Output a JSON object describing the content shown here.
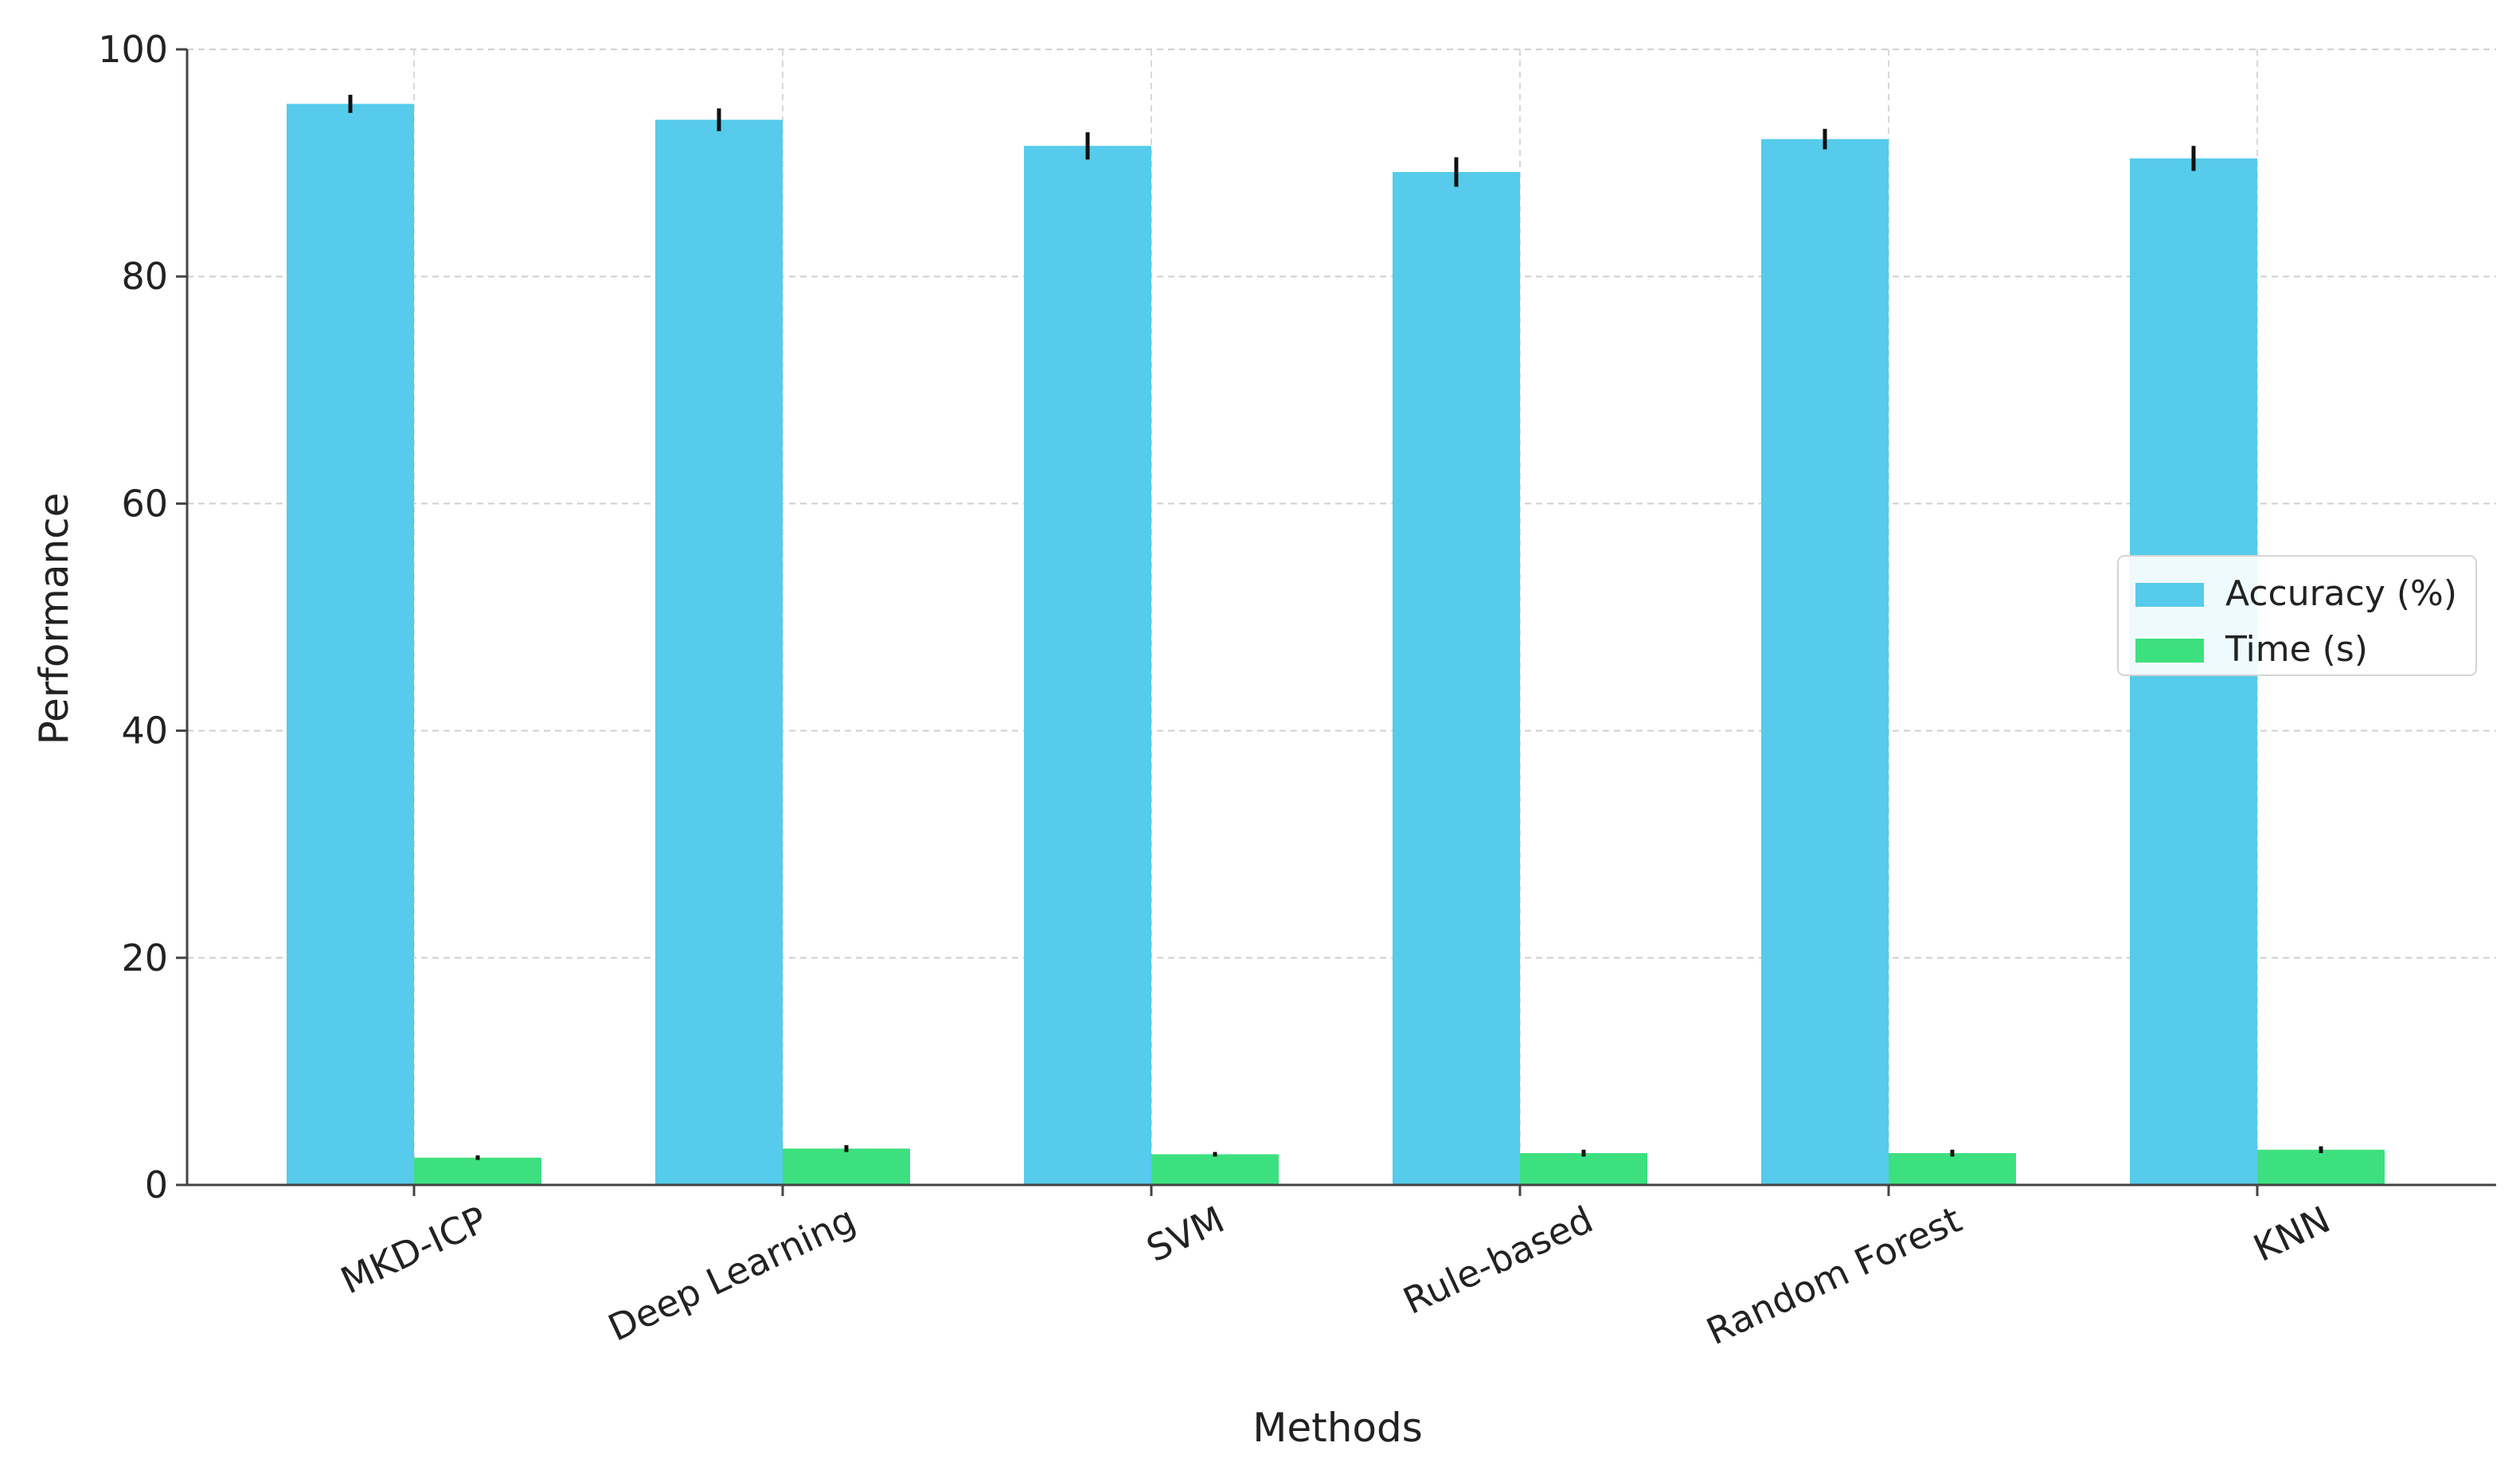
{
  "chart_data": {
    "type": "bar",
    "categories": [
      "MKD-ICP",
      "Deep Learning",
      "SVM",
      "Rule-based",
      "Random Forest",
      "KNN"
    ],
    "series": [
      {
        "name": "Accuracy (%)",
        "color": "#56cbeb",
        "values": [
          95.2,
          93.8,
          91.5,
          89.2,
          92.1,
          90.4
        ],
        "errors": [
          0.8,
          1.0,
          1.2,
          1.3,
          0.9,
          1.1
        ]
      },
      {
        "name": "Time (s)",
        "color": "#3de07f",
        "values": [
          2.4,
          3.2,
          2.7,
          2.8,
          2.8,
          3.1
        ],
        "errors": [
          0.2,
          0.3,
          0.2,
          0.3,
          0.3,
          0.3
        ]
      }
    ],
    "xlabel": "Methods",
    "ylabel": "Performance",
    "ylim": [
      0,
      100
    ],
    "yticks": [
      "0",
      "20",
      "40",
      "60",
      "80",
      "100"
    ],
    "grid": true,
    "legend_position": "center-right"
  }
}
